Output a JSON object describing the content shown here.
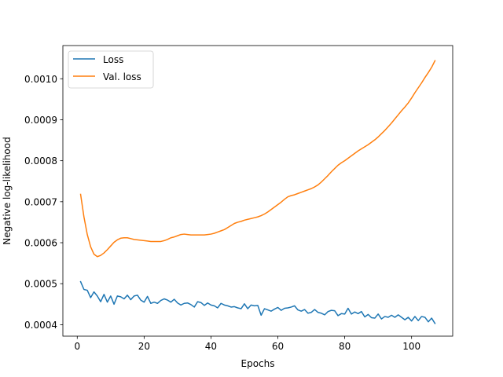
{
  "chart_data": {
    "type": "line",
    "xlabel": "Epochs",
    "ylabel": "Negative log-likelihood",
    "xlim": [
      -4.3,
      112.3
    ],
    "ylim": [
      0.000372,
      0.001081
    ],
    "xticks": [
      0,
      20,
      40,
      60,
      80,
      100
    ],
    "xtick_labels": [
      "0",
      "20",
      "40",
      "60",
      "80",
      "100"
    ],
    "yticks": [
      0.0004,
      0.0005,
      0.0006,
      0.0007,
      0.0008,
      0.0009,
      0.001
    ],
    "ytick_labels": [
      "0.0004",
      "0.0005",
      "0.0006",
      "0.0007",
      "0.0008",
      "0.0009",
      "0.0010"
    ],
    "grid": false,
    "legend_position": "top-left",
    "series": [
      {
        "name": "Loss",
        "color": "#1f77b4",
        "x": [
          1,
          2,
          3,
          4,
          5,
          6,
          7,
          8,
          9,
          10,
          11,
          12,
          13,
          14,
          15,
          16,
          17,
          18,
          19,
          20,
          21,
          22,
          23,
          24,
          25,
          26,
          27,
          28,
          29,
          30,
          31,
          32,
          33,
          34,
          35,
          36,
          37,
          38,
          39,
          40,
          41,
          42,
          43,
          44,
          45,
          46,
          47,
          48,
          49,
          50,
          51,
          52,
          53,
          54,
          55,
          56,
          57,
          58,
          59,
          60,
          61,
          62,
          63,
          64,
          65,
          66,
          67,
          68,
          69,
          70,
          71,
          72,
          73,
          74,
          75,
          76,
          77,
          78,
          79,
          80,
          81,
          82,
          83,
          84,
          85,
          86,
          87,
          88,
          89,
          90,
          91,
          92,
          93,
          94,
          95,
          96,
          97,
          98,
          99,
          100,
          101,
          102,
          103,
          104,
          105,
          106,
          107
        ],
        "y": [
          0.000505,
          0.000486,
          0.000484,
          0.000466,
          0.00048,
          0.00047,
          0.000456,
          0.000474,
          0.000455,
          0.00047,
          0.00045,
          0.00047,
          0.000468,
          0.000463,
          0.000472,
          0.000461,
          0.00047,
          0.000472,
          0.00046,
          0.000455,
          0.000469,
          0.000452,
          0.000455,
          0.000452,
          0.000459,
          0.000463,
          0.00046,
          0.000455,
          0.000462,
          0.000453,
          0.000448,
          0.000452,
          0.000453,
          0.000449,
          0.000443,
          0.000456,
          0.000454,
          0.000447,
          0.000453,
          0.000448,
          0.000446,
          0.000441,
          0.000452,
          0.000448,
          0.000446,
          0.000443,
          0.000444,
          0.000441,
          0.000439,
          0.000451,
          0.000439,
          0.000448,
          0.000446,
          0.000447,
          0.000423,
          0.000439,
          0.000436,
          0.000433,
          0.000438,
          0.000442,
          0.000435,
          0.00044,
          0.000441,
          0.000443,
          0.000446,
          0.000436,
          0.000433,
          0.000437,
          0.000428,
          0.00043,
          0.000437,
          0.00043,
          0.000428,
          0.000424,
          0.000432,
          0.000435,
          0.000434,
          0.000422,
          0.000427,
          0.000426,
          0.00044,
          0.000426,
          0.000431,
          0.000427,
          0.000432,
          0.000419,
          0.000425,
          0.000417,
          0.000416,
          0.000426,
          0.000414,
          0.00042,
          0.000418,
          0.000423,
          0.000418,
          0.000424,
          0.000418,
          0.000412,
          0.000418,
          0.000409,
          0.00042,
          0.00041,
          0.00042,
          0.000418,
          0.000407,
          0.000416,
          0.000403
        ]
      },
      {
        "name": "Val. loss",
        "color": "#ff7f0e",
        "x": [
          1,
          2,
          3,
          4,
          5,
          6,
          7,
          8,
          9,
          10,
          11,
          12,
          13,
          14,
          15,
          16,
          17,
          18,
          19,
          20,
          21,
          22,
          23,
          24,
          25,
          26,
          27,
          28,
          29,
          30,
          31,
          32,
          33,
          34,
          35,
          36,
          37,
          38,
          39,
          40,
          41,
          42,
          43,
          44,
          45,
          46,
          47,
          48,
          49,
          50,
          51,
          52,
          53,
          54,
          55,
          56,
          57,
          58,
          59,
          60,
          61,
          62,
          63,
          64,
          65,
          66,
          67,
          68,
          69,
          70,
          71,
          72,
          73,
          74,
          75,
          76,
          77,
          78,
          79,
          80,
          81,
          82,
          83,
          84,
          85,
          86,
          87,
          88,
          89,
          90,
          91,
          92,
          93,
          94,
          95,
          96,
          97,
          98,
          99,
          100,
          101,
          102,
          103,
          104,
          105,
          106,
          107
        ],
        "y": [
          0.000718,
          0.000663,
          0.00062,
          0.00059,
          0.000572,
          0.000566,
          0.000569,
          0.000575,
          0.000583,
          0.000592,
          0.000601,
          0.000607,
          0.000611,
          0.000612,
          0.000612,
          0.00061,
          0.000608,
          0.000607,
          0.000606,
          0.000605,
          0.000604,
          0.000603,
          0.000603,
          0.000603,
          0.000603,
          0.000605,
          0.000608,
          0.000612,
          0.000614,
          0.000617,
          0.00062,
          0.000621,
          0.00062,
          0.000619,
          0.000619,
          0.000619,
          0.000619,
          0.000619,
          0.00062,
          0.000621,
          0.000623,
          0.000626,
          0.000629,
          0.000632,
          0.000637,
          0.000642,
          0.000647,
          0.00065,
          0.000652,
          0.000655,
          0.000657,
          0.000659,
          0.000661,
          0.000663,
          0.000666,
          0.00067,
          0.000675,
          0.000681,
          0.000687,
          0.000693,
          0.000699,
          0.000706,
          0.000712,
          0.000715,
          0.000717,
          0.00072,
          0.000723,
          0.000726,
          0.000729,
          0.000732,
          0.000736,
          0.000741,
          0.000748,
          0.000756,
          0.000764,
          0.000773,
          0.000781,
          0.000789,
          0.000795,
          0.0008,
          0.000806,
          0.000812,
          0.000818,
          0.000824,
          0.000829,
          0.000834,
          0.000839,
          0.000845,
          0.000851,
          0.000858,
          0.000866,
          0.000874,
          0.000883,
          0.000892,
          0.000902,
          0.000912,
          0.000922,
          0.000931,
          0.000941,
          0.000953,
          0.000966,
          0.000978,
          0.00099,
          0.001003,
          0.001015,
          0.001028,
          0.001044
        ]
      }
    ]
  }
}
